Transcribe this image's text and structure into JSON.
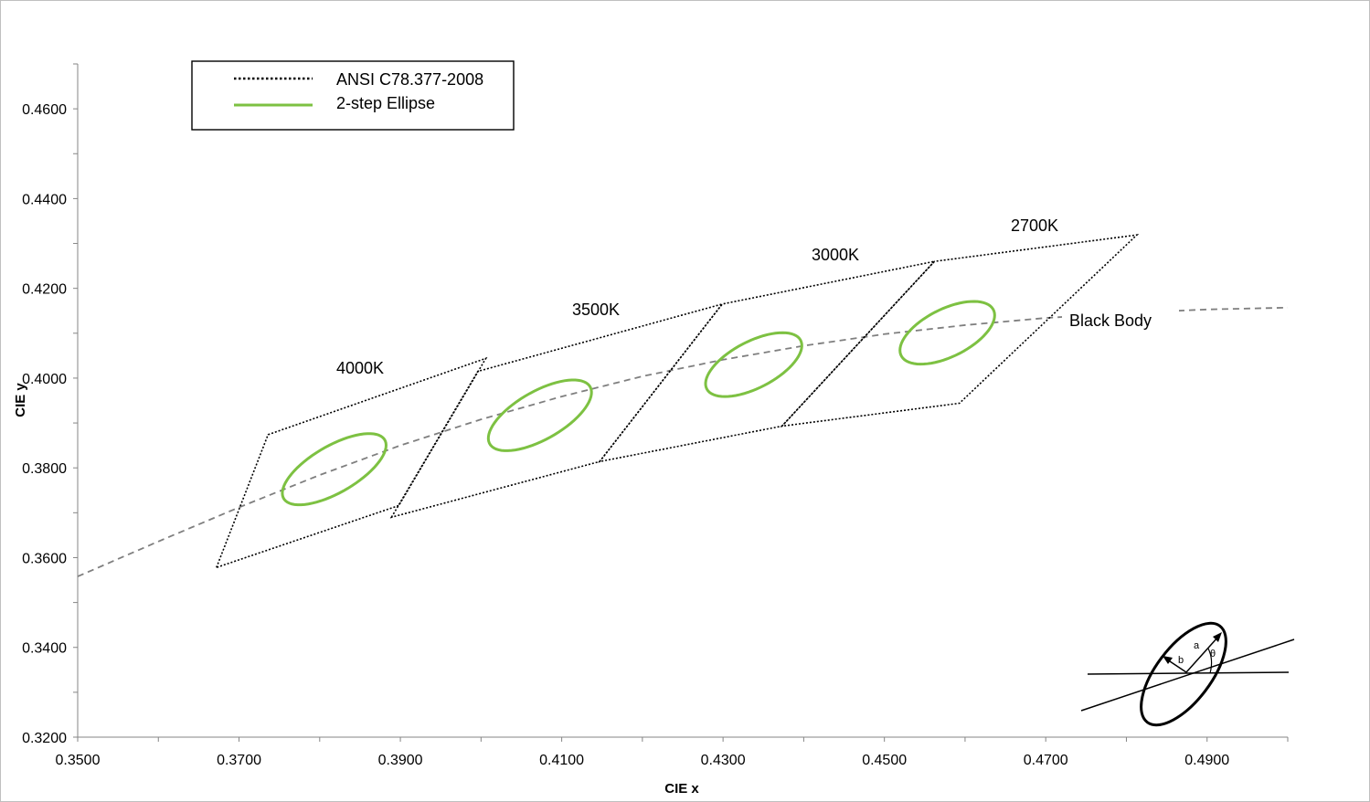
{
  "chart_data": {
    "type": "scatter",
    "title": "",
    "xlabel": "CIE x",
    "ylabel": "CIE y",
    "xlim": [
      0.35,
      0.5
    ],
    "ylim": [
      0.32,
      0.47
    ],
    "x_ticks": [
      "0.3500",
      "0.3700",
      "0.3900",
      "0.4100",
      "0.4300",
      "0.4500",
      "0.4700",
      "0.4900"
    ],
    "y_ticks": [
      "0.3200",
      "0.3400",
      "0.3600",
      "0.3800",
      "0.4000",
      "0.4200",
      "0.4400",
      "0.4600"
    ],
    "grid": false,
    "legend_position": "top-left",
    "legend": [
      {
        "label": "ANSI C78.377-2008",
        "style": "dotted",
        "color": "#000000"
      },
      {
        "label": "2-step Ellipse",
        "style": "solid",
        "color": "#7dc142"
      }
    ],
    "quadrangles": [
      {
        "cct": "4000K",
        "points": [
          [
            0.3672,
            0.3578
          ],
          [
            0.3736,
            0.3874
          ],
          [
            0.4006,
            0.4044
          ],
          [
            0.3898,
            0.3716
          ]
        ]
      },
      {
        "cct": "3500K",
        "points": [
          [
            0.3889,
            0.369
          ],
          [
            0.3996,
            0.4015
          ],
          [
            0.4299,
            0.4165
          ],
          [
            0.4147,
            0.3814
          ]
        ]
      },
      {
        "cct": "3000K",
        "points": [
          [
            0.4147,
            0.3814
          ],
          [
            0.4299,
            0.4165
          ],
          [
            0.4562,
            0.426
          ],
          [
            0.4373,
            0.3893
          ]
        ]
      },
      {
        "cct": "2700K",
        "points": [
          [
            0.4373,
            0.3893
          ],
          [
            0.4562,
            0.426
          ],
          [
            0.4813,
            0.4319
          ],
          [
            0.4593,
            0.3944
          ]
        ]
      }
    ],
    "ellipses": [
      {
        "cct": "4000K",
        "center": [
          0.3818,
          0.3797
        ],
        "a": 0.00939,
        "b": 0.00402,
        "theta_deg": 53.72
      },
      {
        "cct": "3500K",
        "center": [
          0.4073,
          0.3917
        ],
        "a": 0.00927,
        "b": 0.00414,
        "theta_deg": 54.0
      },
      {
        "cct": "3000K",
        "center": [
          0.4338,
          0.403
        ],
        "a": 0.00834,
        "b": 0.00408,
        "theta_deg": 53.22
      },
      {
        "cct": "2700K",
        "center": [
          0.4578,
          0.4101
        ],
        "a": 0.0081,
        "b": 0.0042,
        "theta_deg": 53.7
      }
    ],
    "black_body": {
      "label": "Black Body",
      "style": "dashed",
      "color": "#7f7f7f",
      "points": [
        [
          0.35,
          0.3558
        ],
        [
          0.36,
          0.3636
        ],
        [
          0.37,
          0.3712
        ],
        [
          0.38,
          0.3784
        ],
        [
          0.39,
          0.385
        ],
        [
          0.4,
          0.3908
        ],
        [
          0.41,
          0.3959
        ],
        [
          0.42,
          0.4004
        ],
        [
          0.43,
          0.4041
        ],
        [
          0.44,
          0.4072
        ],
        [
          0.45,
          0.4098
        ],
        [
          0.46,
          0.4118
        ],
        [
          0.47,
          0.4134
        ],
        [
          0.48,
          0.4145
        ],
        [
          0.49,
          0.4153
        ],
        [
          0.5,
          0.4157
        ]
      ]
    },
    "annotations": [
      "4000K",
      "3500K",
      "3000K",
      "2700K",
      "Black Body"
    ]
  },
  "inset": {
    "labels": [
      "a",
      "b",
      "θ"
    ]
  }
}
